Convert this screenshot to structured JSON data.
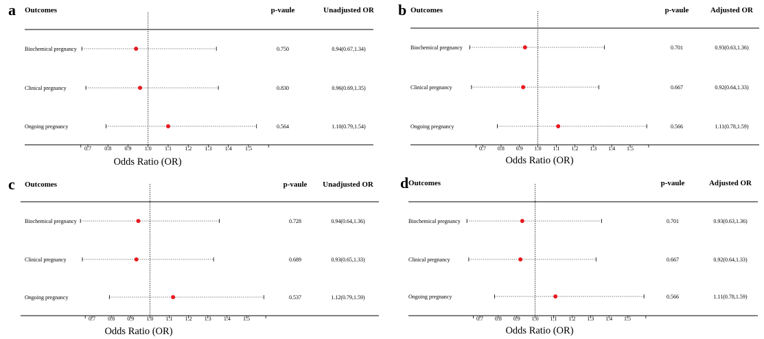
{
  "chart_data": [
    {
      "panel": "a",
      "type": "forest",
      "headers": {
        "outcomes": "Outcomes",
        "pvalue": "p-vaule",
        "or": "Unadjusted OR"
      },
      "xlabel": "Odds Ratio (OR)",
      "xticks": [
        "0.7",
        "0.8",
        "0.9",
        "1.0",
        "1.1",
        "1.2",
        "1.3",
        "1.4",
        "1.5"
      ],
      "reference": 1.0,
      "rows": [
        {
          "outcome": "Biochemical pregnancy",
          "p": "0.750",
          "or_text": "0.94(0.67,1.34)",
          "or": 0.94,
          "lo": 0.67,
          "hi": 1.34
        },
        {
          "outcome": "Clinical pregnancy",
          "p": "0.830",
          "or_text": "0.96(0.69,1.35)",
          "or": 0.96,
          "lo": 0.69,
          "hi": 1.35
        },
        {
          "outcome": "Ongoing pregnancy",
          "p": "0.564",
          "or_text": "1.10(0.79,1.54)",
          "or": 1.1,
          "lo": 0.79,
          "hi": 1.54
        }
      ]
    },
    {
      "panel": "b",
      "type": "forest",
      "headers": {
        "outcomes": "Outcomes",
        "pvalue": "p-vaule",
        "or": "Adjusted OR"
      },
      "xlabel": "Odds Ratio (OR)",
      "xticks": [
        "0.7",
        "0.8",
        "0.9",
        "1.0",
        "1.1",
        "1.2",
        "1.3",
        "1.4",
        "1.5"
      ],
      "reference": 1.0,
      "rows": [
        {
          "outcome": "Biochemical pregnancy",
          "p": "0.701",
          "or_text": "0.93(0.63,1.36)",
          "or": 0.93,
          "lo": 0.63,
          "hi": 1.36
        },
        {
          "outcome": "Clinical pregnancy",
          "p": "0.667",
          "or_text": "0.92(0.64,1.33)",
          "or": 0.92,
          "lo": 0.64,
          "hi": 1.33
        },
        {
          "outcome": "Ongoing pregnancy",
          "p": "0.566",
          "or_text": "1.11(0.78,1.59)",
          "or": 1.11,
          "lo": 0.78,
          "hi": 1.59
        }
      ]
    },
    {
      "panel": "c",
      "type": "forest",
      "headers": {
        "outcomes": "Outcomes",
        "pvalue": "p-vaule",
        "or": "Unadjusted OR"
      },
      "xlabel": "Odds Ratio (OR)",
      "xticks": [
        "0.7",
        "0.8",
        "0.9",
        "1.0",
        "1.1",
        "1.2",
        "1.3",
        "1.4",
        "1.5"
      ],
      "reference": 1.0,
      "rows": [
        {
          "outcome": "Biochemical pregnancy",
          "p": "0.728",
          "or_text": "0.94(0.64,1.36)",
          "or": 0.94,
          "lo": 0.64,
          "hi": 1.36
        },
        {
          "outcome": "Clinical pregnancy",
          "p": "0.689",
          "or_text": "0.93(0.65,1.33)",
          "or": 0.93,
          "lo": 0.65,
          "hi": 1.33
        },
        {
          "outcome": "Ongoing pregnancy",
          "p": "0.537",
          "or_text": "1.12(0.79,1.59)",
          "or": 1.12,
          "lo": 0.79,
          "hi": 1.59
        }
      ]
    },
    {
      "panel": "d",
      "type": "forest",
      "headers": {
        "outcomes": "Outcomes",
        "pvalue": "p-vaule",
        "or": "Adjusted OR"
      },
      "xlabel": "Odds Ratio (OR)",
      "xticks": [
        "0.7",
        "0.8",
        "0.9",
        "1.0",
        "1.1",
        "1.2",
        "1.3",
        "1.4",
        "1.5"
      ],
      "reference": 1.0,
      "rows": [
        {
          "outcome": "Biochemical pregnancy",
          "p": "0.701",
          "or_text": "0.93(0.63,1.36)",
          "or": 0.93,
          "lo": 0.63,
          "hi": 1.36
        },
        {
          "outcome": "Clinical pregnancy",
          "p": "0.667",
          "or_text": "0.92(0.64,1.33)",
          "or": 0.92,
          "lo": 0.64,
          "hi": 1.33
        },
        {
          "outcome": "Ongoing pregnancy",
          "p": "0.566",
          "or_text": "1.11(0.78,1.59)",
          "or": 1.11,
          "lo": 0.78,
          "hi": 1.59
        }
      ]
    }
  ],
  "colors": {
    "point": "#e8191e",
    "line": "#000000"
  }
}
